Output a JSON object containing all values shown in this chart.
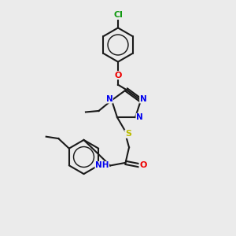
{
  "background_color": "#ebebeb",
  "bond_color": "#1a1a1a",
  "bond_width": 1.5,
  "atom_colors": {
    "N": "#0000ee",
    "O": "#ee0000",
    "S": "#bbbb00",
    "Cl": "#119911",
    "C": "#1a1a1a",
    "H": "#1a1a1a"
  },
  "font_size": 7.5,
  "fig_size": [
    3.0,
    3.0
  ],
  "dpi": 100
}
